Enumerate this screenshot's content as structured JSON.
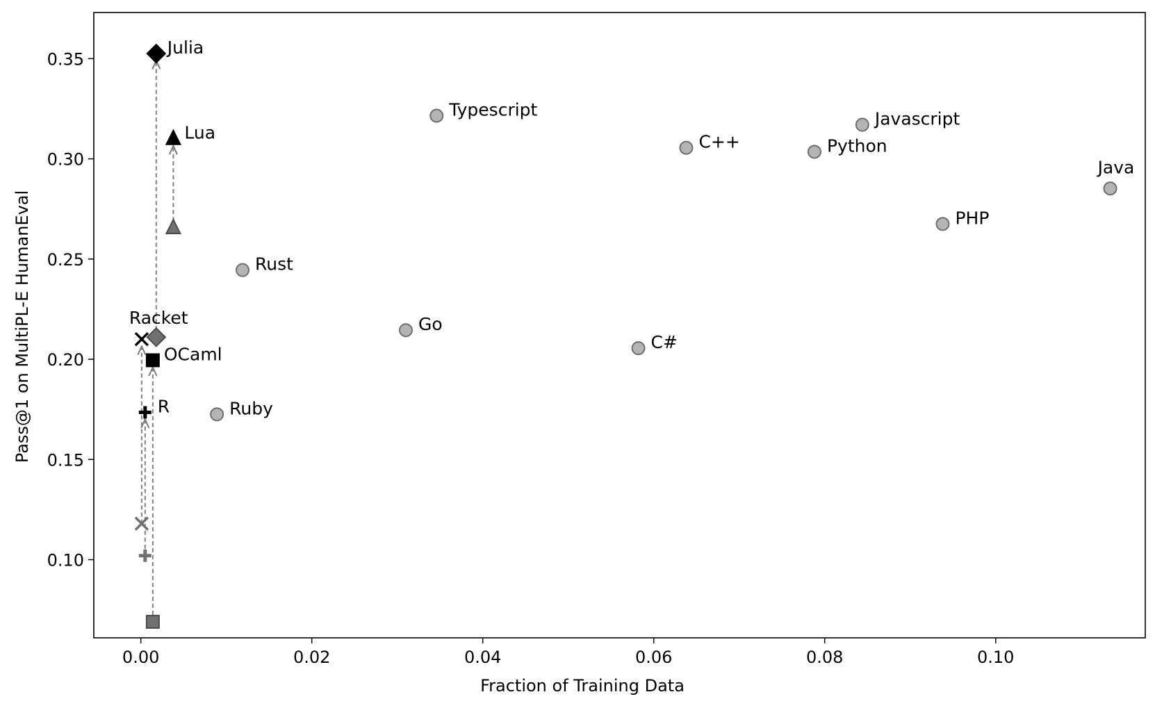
{
  "chart_data": {
    "type": "scatter",
    "title": "",
    "xlabel": "Fraction of Training Data",
    "ylabel": "Pass@1 on MultiPL-E HumanEval",
    "xlim": [
      -0.0055,
      0.1175
    ],
    "ylim": [
      0.061,
      0.373
    ],
    "xticks": [
      0.0,
      0.02,
      0.04,
      0.06,
      0.08,
      0.1
    ],
    "xtick_labels": [
      "0.00",
      "0.02",
      "0.04",
      "0.06",
      "0.08",
      "0.10"
    ],
    "yticks": [
      0.1,
      0.15,
      0.2,
      0.25,
      0.3,
      0.35
    ],
    "ytick_labels": [
      "0.10",
      "0.15",
      "0.20",
      "0.25",
      "0.30",
      "0.35"
    ],
    "grid": false,
    "points": [
      {
        "label": "Typescript",
        "x": 0.0346,
        "y": 0.3215,
        "marker": "circle"
      },
      {
        "label": "Javascript",
        "x": 0.0844,
        "y": 0.317,
        "marker": "circle"
      },
      {
        "label": "C++",
        "x": 0.0638,
        "y": 0.3055,
        "marker": "circle"
      },
      {
        "label": "Python",
        "x": 0.0788,
        "y": 0.3035,
        "marker": "circle"
      },
      {
        "label": "Java",
        "x": 0.1134,
        "y": 0.2852,
        "marker": "circle"
      },
      {
        "label": "PHP",
        "x": 0.0938,
        "y": 0.2675,
        "marker": "circle"
      },
      {
        "label": "Rust",
        "x": 0.0119,
        "y": 0.2445,
        "marker": "circle"
      },
      {
        "label": "Go",
        "x": 0.031,
        "y": 0.2145,
        "marker": "circle"
      },
      {
        "label": "C#",
        "x": 0.0582,
        "y": 0.2055,
        "marker": "circle"
      },
      {
        "label": "Ruby",
        "x": 0.0089,
        "y": 0.1725,
        "marker": "circle"
      }
    ],
    "improved": [
      {
        "label": "Julia",
        "x": 0.0018,
        "y_before": 0.211,
        "y_after": 0.3525,
        "marker": "diamond"
      },
      {
        "label": "Lua",
        "x": 0.0038,
        "y_before": 0.2655,
        "y_after": 0.31,
        "marker": "triangle"
      },
      {
        "label": "Racket",
        "x": 0.0001,
        "y_before": 0.118,
        "y_after": 0.21,
        "marker": "x"
      },
      {
        "label": "OCaml",
        "x": 0.0014,
        "y_before": 0.069,
        "y_after": 0.1995,
        "marker": "square"
      },
      {
        "label": "R",
        "x": 0.0005,
        "y_before": 0.102,
        "y_after": 0.1735,
        "marker": "plus"
      }
    ],
    "colors": {
      "baseline_fill": "#b4b4b4",
      "baseline_edge": "#6e6e6e",
      "before_fill": "#707070",
      "before_edge": "#4a4a4a",
      "after_fill": "#000000",
      "arrow": "#808080"
    }
  }
}
